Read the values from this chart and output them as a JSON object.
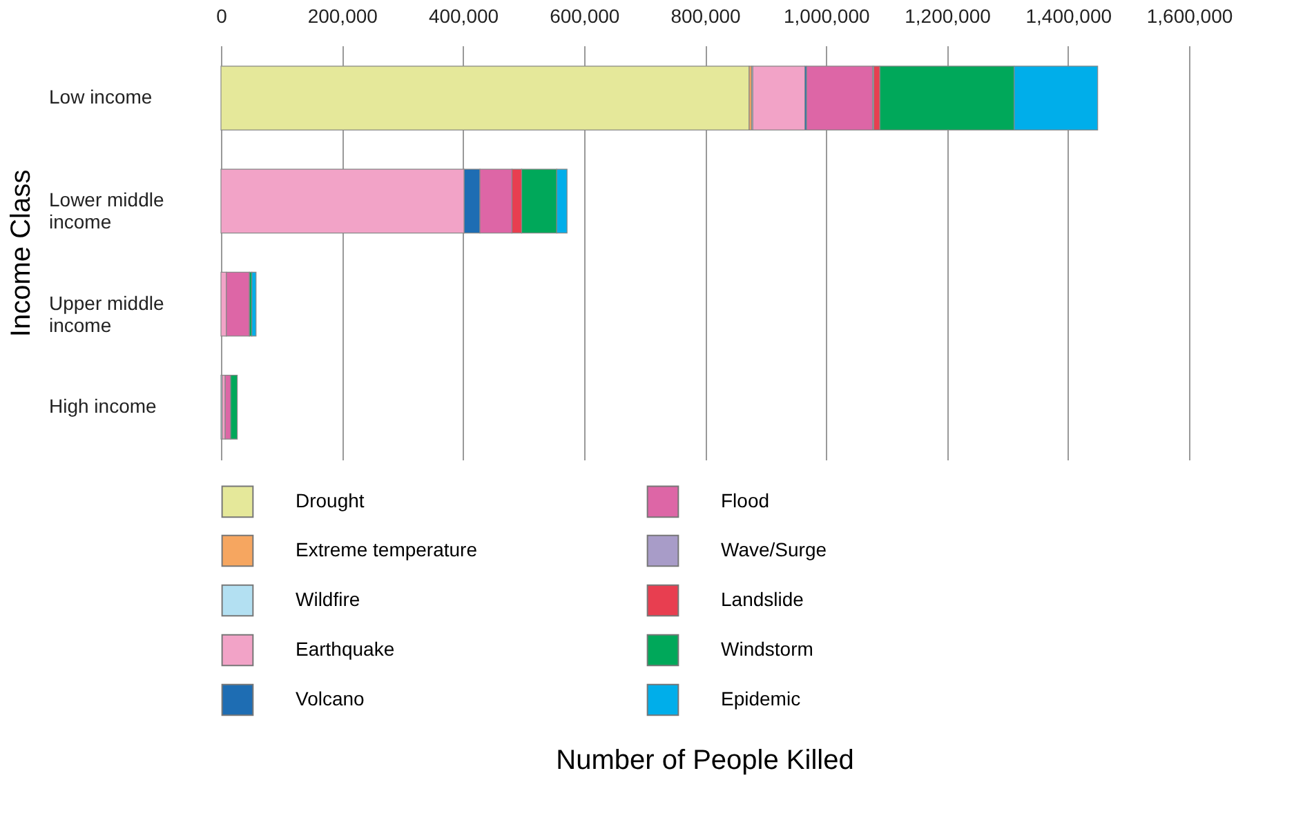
{
  "chart_data": {
    "type": "bar",
    "orientation": "horizontal",
    "stacked": true,
    "categories": [
      "Low income",
      "Lower middle income",
      "Upper middle income",
      "High income"
    ],
    "series": [
      {
        "name": "Drought",
        "color": "#e5e89a",
        "values": [
          873000,
          0,
          0,
          0
        ]
      },
      {
        "name": "Extreme temperature",
        "color": "#f6a660",
        "values": [
          4000,
          0,
          0,
          0
        ]
      },
      {
        "name": "Wildfire",
        "color": "#b3e0f2",
        "values": [
          2000,
          0,
          0,
          2000
        ]
      },
      {
        "name": "Earthquake",
        "color": "#f2a3c7",
        "values": [
          86000,
          402000,
          9000,
          5000
        ]
      },
      {
        "name": "Volcano",
        "color": "#1e6db3",
        "values": [
          3000,
          26000,
          0,
          0
        ]
      },
      {
        "name": "Flood",
        "color": "#dd66a6",
        "values": [
          109000,
          53000,
          38000,
          9000
        ]
      },
      {
        "name": "Wave/Surge",
        "color": "#a89cc8",
        "values": [
          2000,
          0,
          0,
          0
        ]
      },
      {
        "name": "Landslide",
        "color": "#e83e50",
        "values": [
          10000,
          16000,
          0,
          0
        ]
      },
      {
        "name": "Windstorm",
        "color": "#00a85a",
        "values": [
          222000,
          58000,
          4000,
          11000
        ]
      },
      {
        "name": "Epidemic",
        "color": "#00aeea",
        "values": [
          138000,
          17000,
          7000,
          0
        ]
      }
    ],
    "xlim": [
      0,
      1600000
    ],
    "xticks": [
      0,
      {
        "value": 200000,
        "label": "200,000"
      },
      {
        "value": 400000,
        "label": "400,000"
      },
      {
        "value": 600000,
        "label": "600,000"
      },
      {
        "value": 800000,
        "label": "800,000"
      },
      {
        "value": 1000000,
        "label": "1,000,000"
      },
      {
        "value": 1200000,
        "label": "1,200,000"
      },
      {
        "value": 1400000,
        "label": "1,400,000"
      },
      {
        "value": 1600000,
        "label": "1,600,000"
      }
    ],
    "annotations": [
      "Number of People Killed"
    ],
    "ylabel": "Income Class",
    "grid": "x",
    "legend": "bottom"
  }
}
